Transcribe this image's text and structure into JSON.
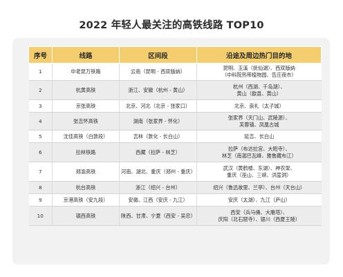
{
  "title": "2022 年轻人最关注的高铁线路 TOP10",
  "headers": [
    "序号",
    "线路",
    "区间段",
    "沿途及周边热门目的地"
  ],
  "rows": [
    {
      "no": "1",
      "line": "中老昆万铁路",
      "section": "云南（昆明 - 西双版纳）",
      "dest1": "昆明、玉溪（抚仙湖）、西双版纳",
      "dest2": "（中科院热带植物园、告庄夜市）"
    },
    {
      "no": "2",
      "line": "杭黄高铁",
      "section": "浙江、安徽（杭州 - 黄山）",
      "dest1": "杭州（西湖、千岛湖）、",
      "dest2": "黄山（歙县、黄山）"
    },
    {
      "no": "3",
      "line": "京张高铁",
      "section": "北京、河北（北京 - 张家口）",
      "dest1": "北京、崇礼（太子城）",
      "dest2": ""
    },
    {
      "no": "4",
      "line": "张吉怀高铁",
      "section": "湖南（张家界 - 怀化）",
      "dest1": "张家界（天门山、武陵源）、",
      "dest2": "芙蓉镇、凤凰古城"
    },
    {
      "no": "5",
      "line": "沈佳高铁（白敦段）",
      "section": "吉林（敦化 - 长白山）",
      "dest1": "延吉、长白山",
      "dest2": ""
    },
    {
      "no": "6",
      "line": "拉林铁路",
      "section": "西藏（拉萨 - 林芝）",
      "dest1": "拉萨（布达拉宫、大昭寺）、",
      "dest2": "林芝（南迦巴瓦峰、雅鲁藏布江）"
    },
    {
      "no": "7",
      "line": "郑渝高铁",
      "section": "河南、湖北、重庆（郑州 - 重庆）",
      "dest1": "武汉（黄鹤楼、东湖）、神农架、",
      "dest2": "重庆（巫山、三峡、洪崖洞）"
    },
    {
      "no": "8",
      "line": "杭台高铁",
      "section": "浙江（绍兴 - 台州）",
      "dest1": "绍兴（鲁迅故里、兰亭）、台州（天台山）",
      "dest2": ""
    },
    {
      "no": "9",
      "line": "京港高铁（安九段）",
      "section": "安徽、江西（安庆 - 九江）",
      "dest1": "安庆（太湖）、九江（庐山）",
      "dest2": ""
    },
    {
      "no": "10",
      "line": "银西高铁",
      "section": "陕西、甘肃、宁夏（西安 - 吴忠）",
      "dest1": "西安（兵马俑、大雁塔）、",
      "dest2": "庆阳（北石窟寺）、银川（西夏王陵）"
    }
  ]
}
